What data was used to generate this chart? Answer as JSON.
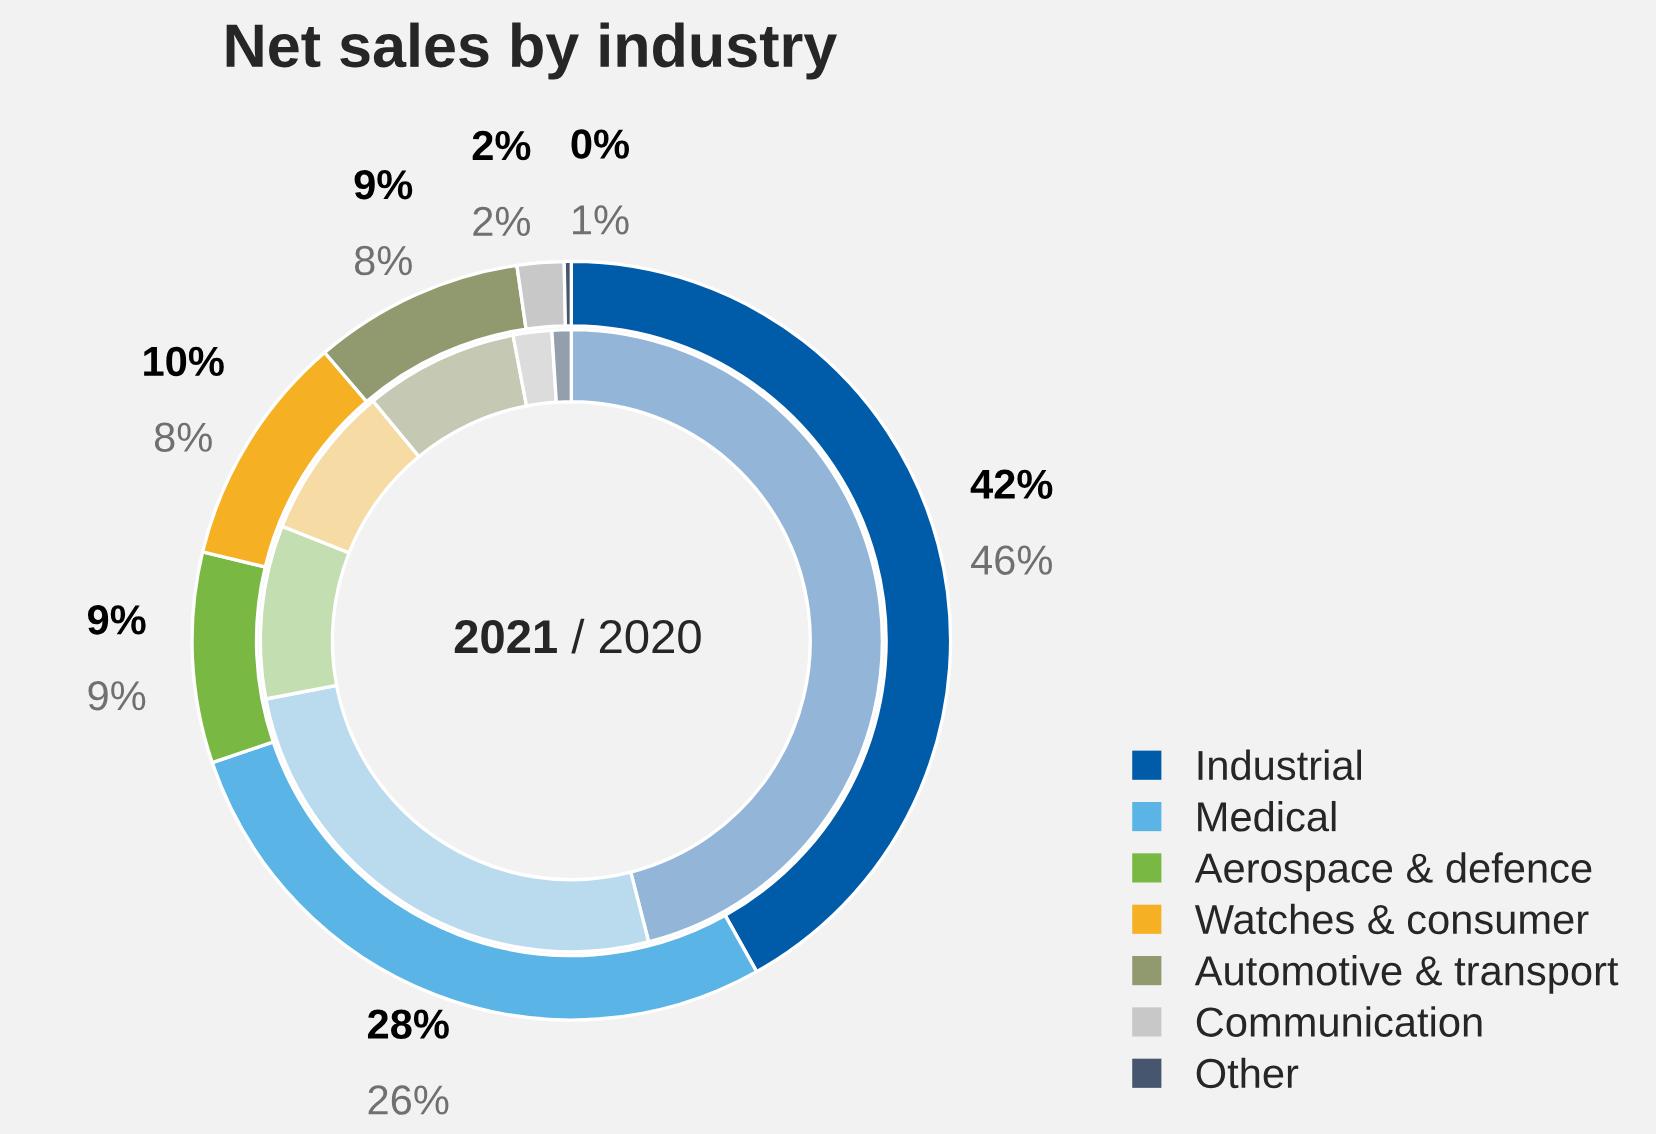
{
  "chart_data": {
    "type": "donut",
    "title": "Net sales by industry",
    "categories": [
      "Industrial",
      "Medical",
      "Aerospace & defence",
      "Watches & consumer",
      "Automotive & transport",
      "Communication",
      "Other"
    ],
    "series": [
      {
        "values": [
          42,
          28,
          9,
          10,
          9,
          2,
          0.3
        ],
        "value_labels": [
          "42%",
          "28%",
          "9%",
          "10%",
          "9%",
          "2%",
          "0%"
        ],
        "colors": [
          "#005ca9",
          "#5ab4e6",
          "#78b843",
          "#f5b024",
          "#919a6e",
          "#c8c8c8",
          "#46566e"
        ]
      },
      {
        "values": [
          46,
          26,
          9,
          8,
          8,
          2,
          1
        ],
        "value_labels": [
          "46%",
          "26%",
          "9%",
          "8%",
          "8%",
          "2%",
          "1%"
        ],
        "colors": [
          "#93b5d7",
          "#badaee",
          "#c3dfb1",
          "#f6dba4",
          "#c5c8b3",
          "#dcdcdc",
          "#959ead"
        ]
      }
    ],
    "annotations": [
      "2021",
      "/ 2020"
    ],
    "legend": "bottom right"
  }
}
